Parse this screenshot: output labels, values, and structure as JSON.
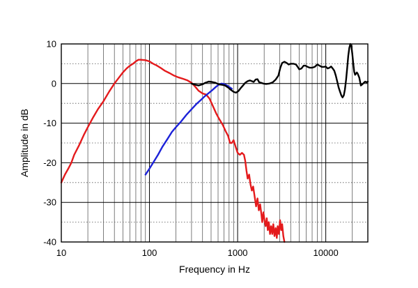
{
  "chart_data": {
    "type": "line",
    "title": "",
    "xlabel": "Frequency in Hz",
    "ylabel": "Amplitude in dB",
    "xscale": "log",
    "xlim": [
      10,
      30000
    ],
    "ylim": [
      -40,
      10
    ],
    "grid": true,
    "legend": "none",
    "x_ticks": [
      10,
      100,
      1000,
      10000
    ],
    "x_tick_labels": [
      "10",
      "100",
      "1000",
      "10000"
    ],
    "y_ticks": [
      10,
      0,
      -10,
      -20,
      -30,
      -40
    ],
    "y_tick_labels": [
      "10",
      "0",
      "-10",
      "-20",
      "-30",
      "-40"
    ],
    "series": [
      {
        "color": "#e41a1c",
        "points": [
          [
            10,
            -25
          ],
          [
            11,
            -23
          ],
          [
            12,
            -21.5
          ],
          [
            13,
            -20
          ],
          [
            14,
            -18
          ],
          [
            16,
            -15.5
          ],
          [
            18,
            -13
          ],
          [
            20,
            -11
          ],
          [
            23,
            -8.5
          ],
          [
            26,
            -6.5
          ],
          [
            30,
            -4.5
          ],
          [
            35,
            -2
          ],
          [
            40,
            0
          ],
          [
            45,
            1.5
          ],
          [
            50,
            2.8
          ],
          [
            55,
            3.8
          ],
          [
            60,
            4.5
          ],
          [
            65,
            5
          ],
          [
            70,
            5.6
          ],
          [
            75,
            6
          ],
          [
            80,
            6
          ],
          [
            90,
            5.9
          ],
          [
            100,
            5.6
          ],
          [
            110,
            5
          ],
          [
            120,
            4.6
          ],
          [
            135,
            3.9
          ],
          [
            150,
            3.2
          ],
          [
            170,
            2.6
          ],
          [
            190,
            2
          ],
          [
            210,
            1.6
          ],
          [
            240,
            1.2
          ],
          [
            270,
            0.8
          ],
          [
            300,
            0.2
          ],
          [
            330,
            -0.8
          ],
          [
            360,
            -1.8
          ],
          [
            400,
            -2.5
          ],
          [
            440,
            -2.8
          ],
          [
            480,
            -3.8
          ],
          [
            520,
            -5.5
          ],
          [
            570,
            -7.5
          ],
          [
            620,
            -9
          ],
          [
            680,
            -10.5
          ],
          [
            730,
            -12
          ],
          [
            780,
            -13.2
          ],
          [
            820,
            -15
          ],
          [
            860,
            -15
          ],
          [
            900,
            -14.3
          ],
          [
            950,
            -16
          ],
          [
            1000,
            -17.5
          ],
          [
            1060,
            -18
          ],
          [
            1120,
            -17.5
          ],
          [
            1180,
            -18
          ],
          [
            1220,
            -19.5
          ],
          [
            1260,
            -22
          ],
          [
            1300,
            -24
          ],
          [
            1350,
            -23
          ],
          [
            1400,
            -25.5
          ],
          [
            1450,
            -27
          ],
          [
            1500,
            -26
          ],
          [
            1560,
            -28.5
          ],
          [
            1620,
            -31
          ],
          [
            1680,
            -29
          ],
          [
            1740,
            -32
          ],
          [
            1800,
            -30.5
          ],
          [
            1860,
            -33
          ],
          [
            1900,
            -35
          ],
          [
            1960,
            -32.5
          ],
          [
            2020,
            -34.5
          ],
          [
            2080,
            -36
          ],
          [
            2140,
            -34
          ],
          [
            2200,
            -37
          ],
          [
            2260,
            -35
          ],
          [
            2330,
            -38
          ],
          [
            2400,
            -36
          ],
          [
            2470,
            -38
          ],
          [
            2540,
            -35.5
          ],
          [
            2620,
            -38.5
          ],
          [
            2700,
            -36.5
          ],
          [
            2780,
            -39
          ],
          [
            2850,
            -36
          ],
          [
            2940,
            -38
          ],
          [
            3030,
            -34.5
          ],
          [
            3120,
            -37
          ],
          [
            3200,
            -35.5
          ],
          [
            3300,
            -38.5
          ],
          [
            3400,
            -40
          ]
        ]
      },
      {
        "color": "#1c22d8",
        "points": [
          [
            90,
            -23
          ],
          [
            100,
            -21.5
          ],
          [
            110,
            -20
          ],
          [
            125,
            -18
          ],
          [
            140,
            -16
          ],
          [
            160,
            -14
          ],
          [
            180,
            -12.2
          ],
          [
            200,
            -11
          ],
          [
            230,
            -9.5
          ],
          [
            260,
            -8
          ],
          [
            300,
            -6.5
          ],
          [
            340,
            -5.2
          ],
          [
            380,
            -4.2
          ],
          [
            420,
            -3.3
          ],
          [
            470,
            -2.4
          ],
          [
            520,
            -1.6
          ],
          [
            570,
            -0.8
          ],
          [
            620,
            -0.2
          ],
          [
            660,
            0
          ],
          [
            700,
            -0.1
          ],
          [
            760,
            -0.5
          ],
          [
            820,
            -1
          ],
          [
            860,
            -1.3
          ]
        ]
      },
      {
        "color": "#000000",
        "points": [
          [
            300,
            0
          ],
          [
            330,
            -0.3
          ],
          [
            360,
            -0.5
          ],
          [
            400,
            -0.2
          ],
          [
            430,
            0.2
          ],
          [
            470,
            0.5
          ],
          [
            510,
            0.4
          ],
          [
            560,
            0.2
          ],
          [
            610,
            -0.2
          ],
          [
            660,
            -0.3
          ],
          [
            720,
            -0.5
          ],
          [
            780,
            -1
          ],
          [
            840,
            -1.6
          ],
          [
            900,
            -2.1
          ],
          [
            960,
            -2.3
          ],
          [
            1020,
            -1.9
          ],
          [
            1080,
            -1.2
          ],
          [
            1150,
            -0.5
          ],
          [
            1220,
            0.2
          ],
          [
            1300,
            0.6
          ],
          [
            1380,
            0.8
          ],
          [
            1450,
            0.6
          ],
          [
            1520,
            0.4
          ],
          [
            1600,
            1
          ],
          [
            1680,
            1.1
          ],
          [
            1760,
            0.3
          ],
          [
            1850,
            0.2
          ],
          [
            1950,
            0
          ],
          [
            2100,
            -0.1
          ],
          [
            2300,
            0
          ],
          [
            2500,
            0.3
          ],
          [
            2700,
            1
          ],
          [
            2900,
            2
          ],
          [
            3050,
            4
          ],
          [
            3200,
            5.2
          ],
          [
            3400,
            5.5
          ],
          [
            3600,
            5.2
          ],
          [
            3800,
            4.8
          ],
          [
            4000,
            5
          ],
          [
            4300,
            5
          ],
          [
            4600,
            4.8
          ],
          [
            4800,
            4.2
          ],
          [
            5000,
            3.6
          ],
          [
            5300,
            3.8
          ],
          [
            5600,
            4.5
          ],
          [
            5900,
            4.5
          ],
          [
            6200,
            4.2
          ],
          [
            6600,
            4
          ],
          [
            7000,
            4
          ],
          [
            7500,
            4.2
          ],
          [
            8000,
            4.8
          ],
          [
            8500,
            4.5
          ],
          [
            9000,
            4.2
          ],
          [
            9500,
            4.2
          ],
          [
            10000,
            4.3
          ],
          [
            10500,
            3.8
          ],
          [
            11000,
            4
          ],
          [
            11500,
            4.3
          ],
          [
            12000,
            3.8
          ],
          [
            12500,
            3.2
          ],
          [
            13000,
            2
          ],
          [
            13500,
            0.5
          ],
          [
            14000,
            -1
          ],
          [
            14500,
            -2
          ],
          [
            15000,
            -3
          ],
          [
            15500,
            -3.5
          ],
          [
            16000,
            -3
          ],
          [
            16500,
            -1.5
          ],
          [
            17000,
            1
          ],
          [
            17500,
            4
          ],
          [
            18000,
            7
          ],
          [
            18500,
            9
          ],
          [
            19000,
            10
          ],
          [
            19500,
            9.5
          ],
          [
            20000,
            7.5
          ],
          [
            20500,
            5
          ],
          [
            21000,
            3
          ],
          [
            21500,
            2.2
          ],
          [
            22000,
            2.5
          ],
          [
            22500,
            2.8
          ],
          [
            23000,
            2.5
          ],
          [
            24000,
            1.5
          ],
          [
            25000,
            -0.5
          ],
          [
            26000,
            -0.2
          ],
          [
            27000,
            0.2
          ],
          [
            28000,
            0.5
          ],
          [
            29000,
            0.3
          ],
          [
            30000,
            0.5
          ]
        ]
      }
    ]
  }
}
